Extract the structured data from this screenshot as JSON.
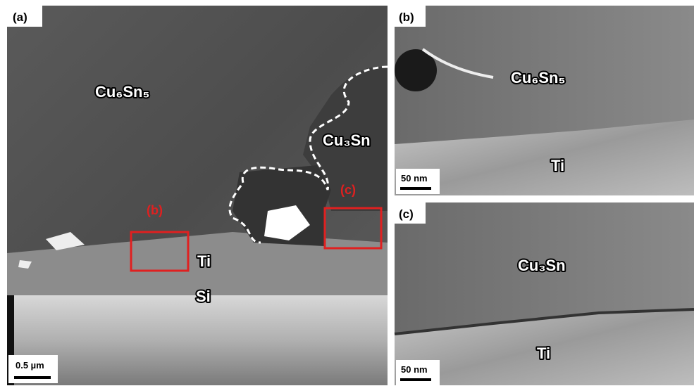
{
  "panels": [
    {
      "label": "(a)",
      "phases": [
        "Cu₆Sn₅",
        "Cu₃Sn",
        "Ti",
        "Si"
      ],
      "regions": [
        "(b)",
        "(c)"
      ],
      "scale_bar": "0.5 µm"
    },
    {
      "label": "(b)",
      "phases": [
        "Cu₆Sn₅",
        "Ti"
      ],
      "scale_bar": "50 nm"
    },
    {
      "label": "(c)",
      "phases": [
        "Cu₃Sn",
        "Ti"
      ],
      "scale_bar": "50 nm"
    }
  ]
}
